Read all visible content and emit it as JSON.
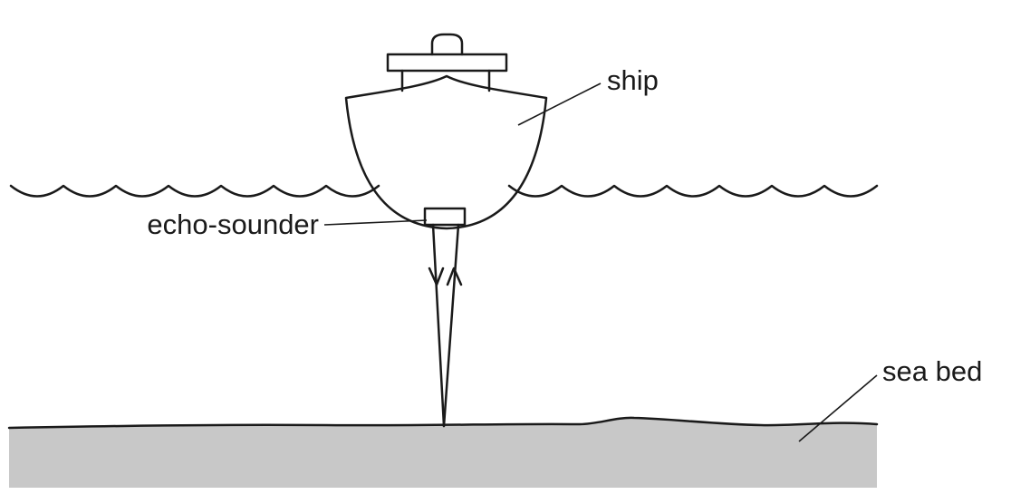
{
  "labels": {
    "ship": "ship",
    "echo_sounder": "echo-sounder",
    "sea_bed": "sea bed"
  },
  "colors": {
    "line": "#1a1a1a",
    "sea_bed_fill": "#c8c8c8",
    "background": "#ffffff"
  }
}
